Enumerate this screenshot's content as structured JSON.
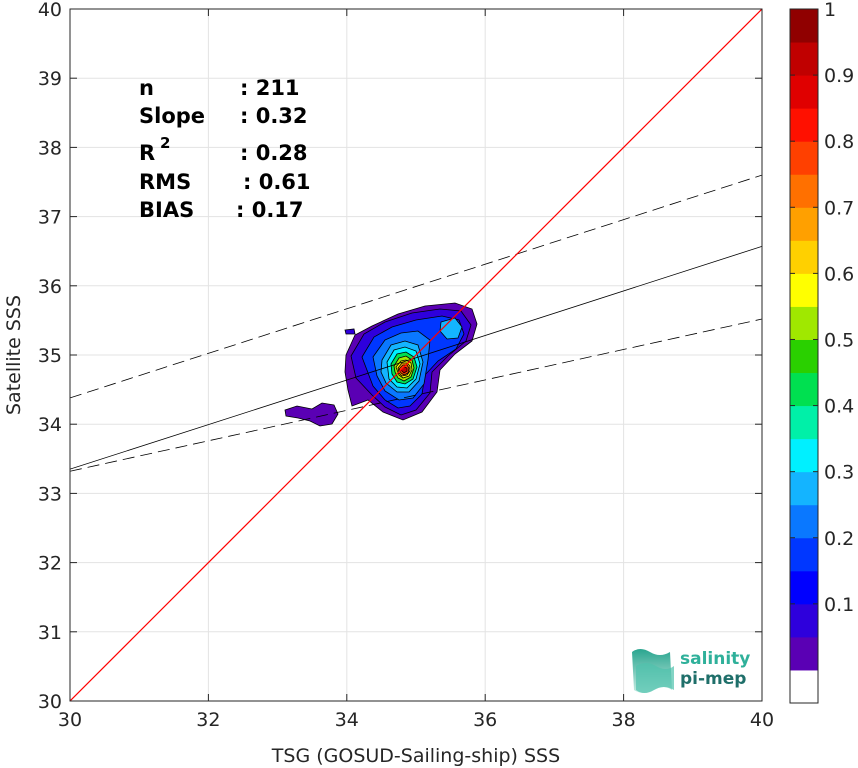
{
  "chart_data": {
    "type": "scatter",
    "xlabel": "TSG (GOSUD-Sailing-ship) SSS",
    "ylabel": "Satellite SSS",
    "xlim": [
      30,
      40
    ],
    "ylim": [
      30,
      40
    ],
    "x_ticks": [
      30,
      32,
      34,
      36,
      38,
      40
    ],
    "y_ticks": [
      30,
      31,
      32,
      33,
      34,
      35,
      36,
      37,
      38,
      39,
      40
    ],
    "grid": true,
    "stats": {
      "n": {
        "label": "n",
        "value": ": 211"
      },
      "slope": {
        "label": "Slope",
        "value": ": 0.32"
      },
      "r2": {
        "label": "R",
        "sup": "2",
        "value": ": 0.28"
      },
      "rms": {
        "label": "RMS",
        "value": ": 0.61"
      },
      "bias": {
        "label": "BIAS",
        "value": ": 0.17"
      }
    },
    "identity_line": {
      "color": "#ff0000",
      "points": [
        [
          30,
          30
        ],
        [
          40,
          40
        ]
      ]
    },
    "fit_line": {
      "color": "#000000",
      "points": [
        [
          30,
          33.35
        ],
        [
          40,
          36.57
        ]
      ]
    },
    "fit_upper": {
      "points": [
        [
          30,
          34.38
        ],
        [
          40,
          37.6
        ]
      ]
    },
    "fit_lower": {
      "points": [
        [
          30,
          33.32
        ],
        [
          40,
          35.52
        ]
      ]
    },
    "density_peak": {
      "x": 34.85,
      "y": 34.75,
      "value": 1.0
    },
    "colorbar": {
      "ticks": [
        "0.1",
        "0.2",
        "0.3",
        "0.4",
        "0.5",
        "0.6",
        "0.7",
        "0.8",
        "0.9",
        "1"
      ],
      "tick_values": [
        0.1,
        0.2,
        0.3,
        0.4,
        0.5,
        0.6,
        0.7,
        0.8,
        0.9,
        1.0
      ],
      "colors": [
        "#ffffff",
        "#5a00b4",
        "#2e00dc",
        "#0000ff",
        "#0037ff",
        "#0a78ff",
        "#14b4ff",
        "#00f0ff",
        "#00f0a8",
        "#00e050",
        "#2ad000",
        "#a0e800",
        "#ffff00",
        "#ffd000",
        "#ffa000",
        "#ff7000",
        "#ff4000",
        "#ff1000",
        "#e00000",
        "#c00000",
        "#900000"
      ]
    }
  },
  "logo": {
    "line1": "salinity",
    "line2": "pi-mep"
  }
}
